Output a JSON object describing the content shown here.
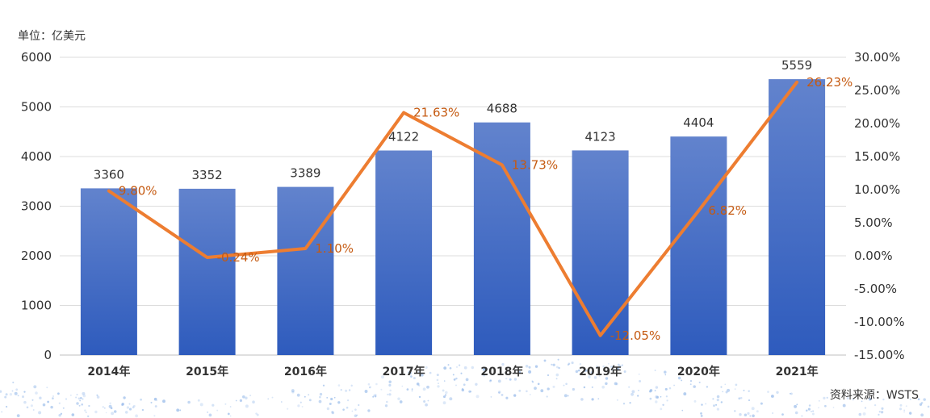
{
  "unit_label": "单位：亿美元",
  "source_label": "资料来源：WSTS",
  "colors": {
    "bar_top": "#6283cd",
    "bar_bottom": "#2e5bbd",
    "line": "#ed7d31",
    "growth_label": "#c55a11",
    "grid": "#dcdcdc",
    "dots": "#8fb5e8"
  },
  "chart_data": {
    "type": "bar",
    "categories": [
      "2014年",
      "2015年",
      "2016年",
      "2017年",
      "2018年",
      "2019年",
      "2020年",
      "2021年"
    ],
    "series": [
      {
        "type": "bar",
        "axis": "left",
        "values": [
          3360,
          3352,
          3389,
          4122,
          4688,
          4123,
          4404,
          5559
        ],
        "labels": [
          "3360",
          "3352",
          "3389",
          "4122",
          "4688",
          "4123",
          "4404",
          "5559"
        ]
      },
      {
        "type": "line",
        "axis": "right",
        "values": [
          9.8,
          -0.24,
          1.1,
          21.63,
          13.73,
          -12.05,
          6.82,
          26.23
        ],
        "labels": [
          "9.80%",
          "-0.24%",
          "1.10%",
          "21.63%",
          "13.73%",
          "-12.05%",
          "6.82%",
          "26.23%"
        ]
      }
    ],
    "y_left": {
      "min": 0,
      "max": 6000,
      "ticks": [
        "0",
        "1000",
        "2000",
        "3000",
        "4000",
        "5000",
        "6000"
      ]
    },
    "y_right": {
      "min": -15,
      "max": 30,
      "ticks": [
        "-15.00%",
        "-10.00%",
        "-5.00%",
        "0.00%",
        "5.00%",
        "10.00%",
        "15.00%",
        "20.00%",
        "25.00%",
        "30.00%"
      ]
    },
    "grid": true
  }
}
